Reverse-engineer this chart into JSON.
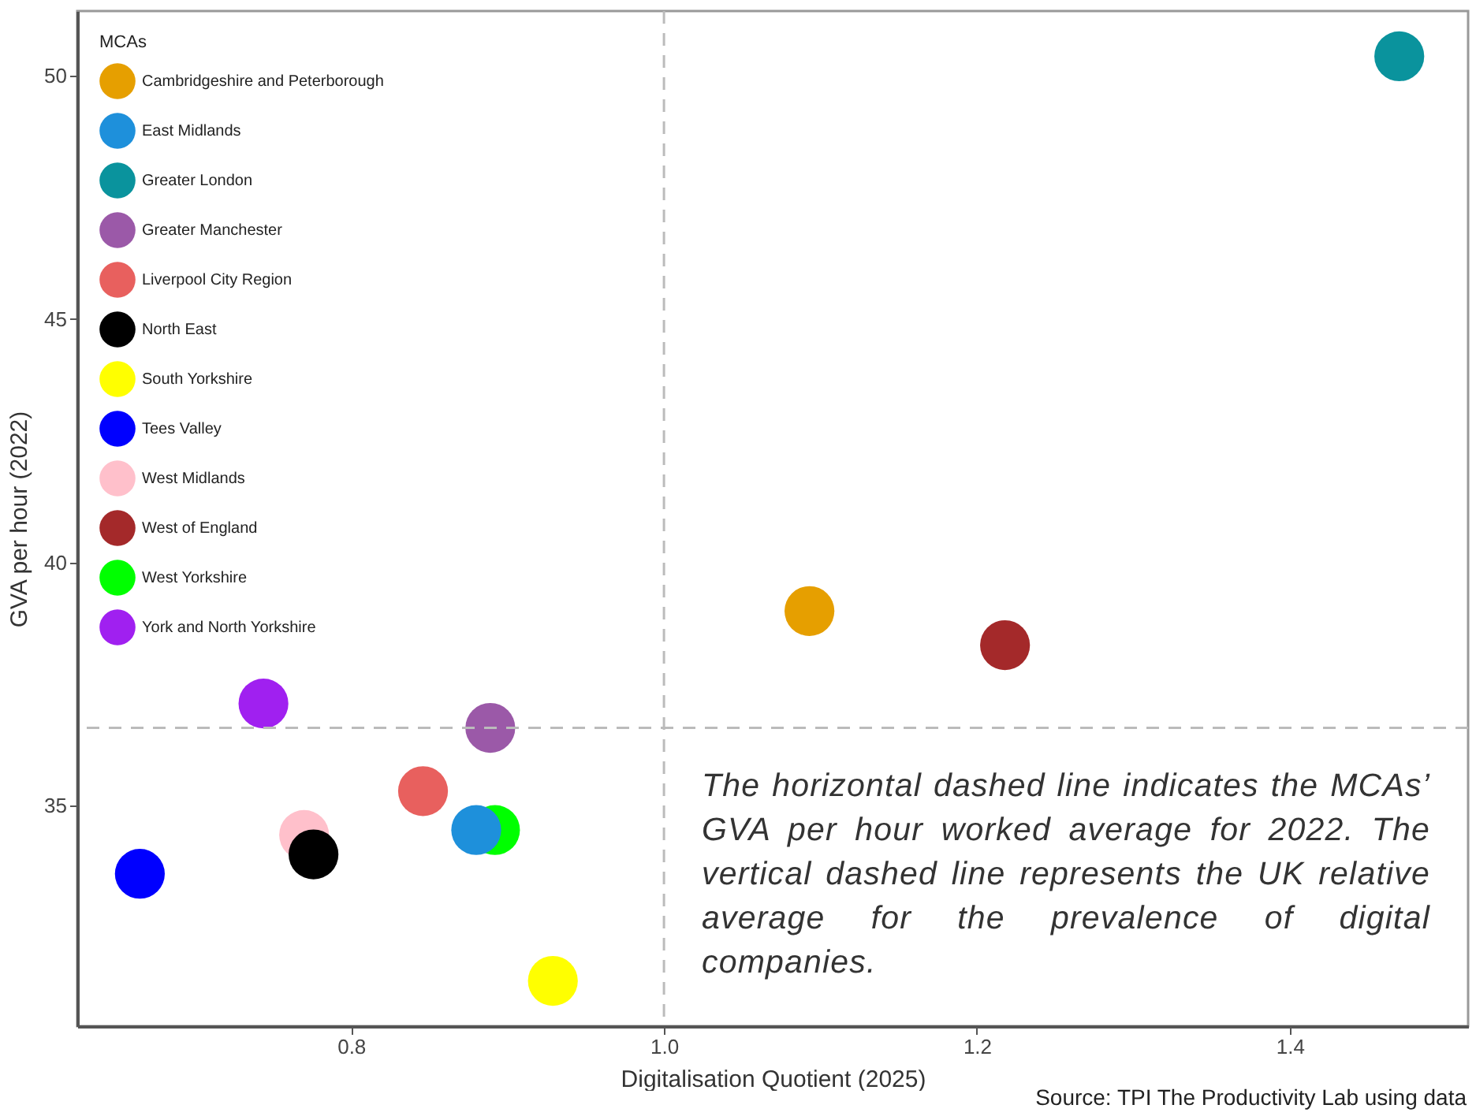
{
  "chart_data": {
    "type": "scatter",
    "xlabel": "Digitalisation Quotient (2025)",
    "ylabel": "GVA per hour (2022)",
    "legend_title": "MCAs",
    "legend": "top left",
    "grid": false,
    "marker": "circle",
    "xlim": [
      0.625,
      1.514
    ],
    "xticks": [
      {
        "value": 0.8,
        "label": "0.8"
      },
      {
        "value": 1.0,
        "label": "1.0"
      },
      {
        "value": 1.2,
        "label": "1.2"
      },
      {
        "value": 1.4,
        "label": "1.4"
      }
    ],
    "ylim": [
      30.47,
      51.33
    ],
    "yticks": [
      35,
      40,
      45,
      50
    ],
    "series": [
      {
        "name": "Cambridgeshire and Peterborough",
        "color": "#e69f00",
        "x": [
          1.093
        ],
        "values": [
          39.0
        ]
      },
      {
        "name": "East Midlands",
        "color": "#1e90db",
        "x": [
          0.88
        ],
        "values": [
          34.5
        ]
      },
      {
        "name": "Greater London",
        "color": "#0a939d",
        "x": [
          1.47
        ],
        "values": [
          50.4
        ]
      },
      {
        "name": "Greater Manchester",
        "color": "#9b59a8",
        "x": [
          0.889
        ],
        "values": [
          36.6
        ]
      },
      {
        "name": "Liverpool City Region",
        "color": "#e8605e",
        "x": [
          0.846
        ],
        "values": [
          35.3
        ]
      },
      {
        "name": "North East",
        "color": "#000000",
        "x": [
          0.776
        ],
        "values": [
          34.0
        ]
      },
      {
        "name": "South Yorkshire",
        "color": "#ffff00",
        "x": [
          0.929
        ],
        "values": [
          31.4
        ]
      },
      {
        "name": "Tees Valley",
        "color": "#0000ff",
        "x": [
          0.665
        ],
        "values": [
          33.6
        ]
      },
      {
        "name": "West Midlands",
        "color": "#ffc0cb",
        "x": [
          0.77
        ],
        "values": [
          34.4
        ]
      },
      {
        "name": "West of England",
        "color": "#a4292a",
        "x": [
          1.218
        ],
        "values": [
          38.3
        ]
      },
      {
        "name": "West Yorkshire",
        "color": "#00ff00",
        "x": [
          0.892
        ],
        "values": [
          34.5
        ]
      },
      {
        "name": "York and North Yorkshire",
        "color": "#a020f0",
        "x": [
          0.744
        ],
        "values": [
          37.1
        ]
      }
    ],
    "ref_lines": [
      {
        "axis": "y",
        "value": 36.6,
        "color": "#bbbbbb",
        "line_style": "dashed"
      },
      {
        "axis": "x",
        "value": 1.0,
        "color": "#bbbbbb",
        "line_style": "dashed"
      }
    ],
    "annotations": [
      "The horizontal dashed line indicates the MCAs’ GVA per hour worked average for 2022. The vertical dashed line represents the UK relative average for the prevalence of digital companies.",
      "Source: TPI The Productivity Lab using data"
    ]
  }
}
